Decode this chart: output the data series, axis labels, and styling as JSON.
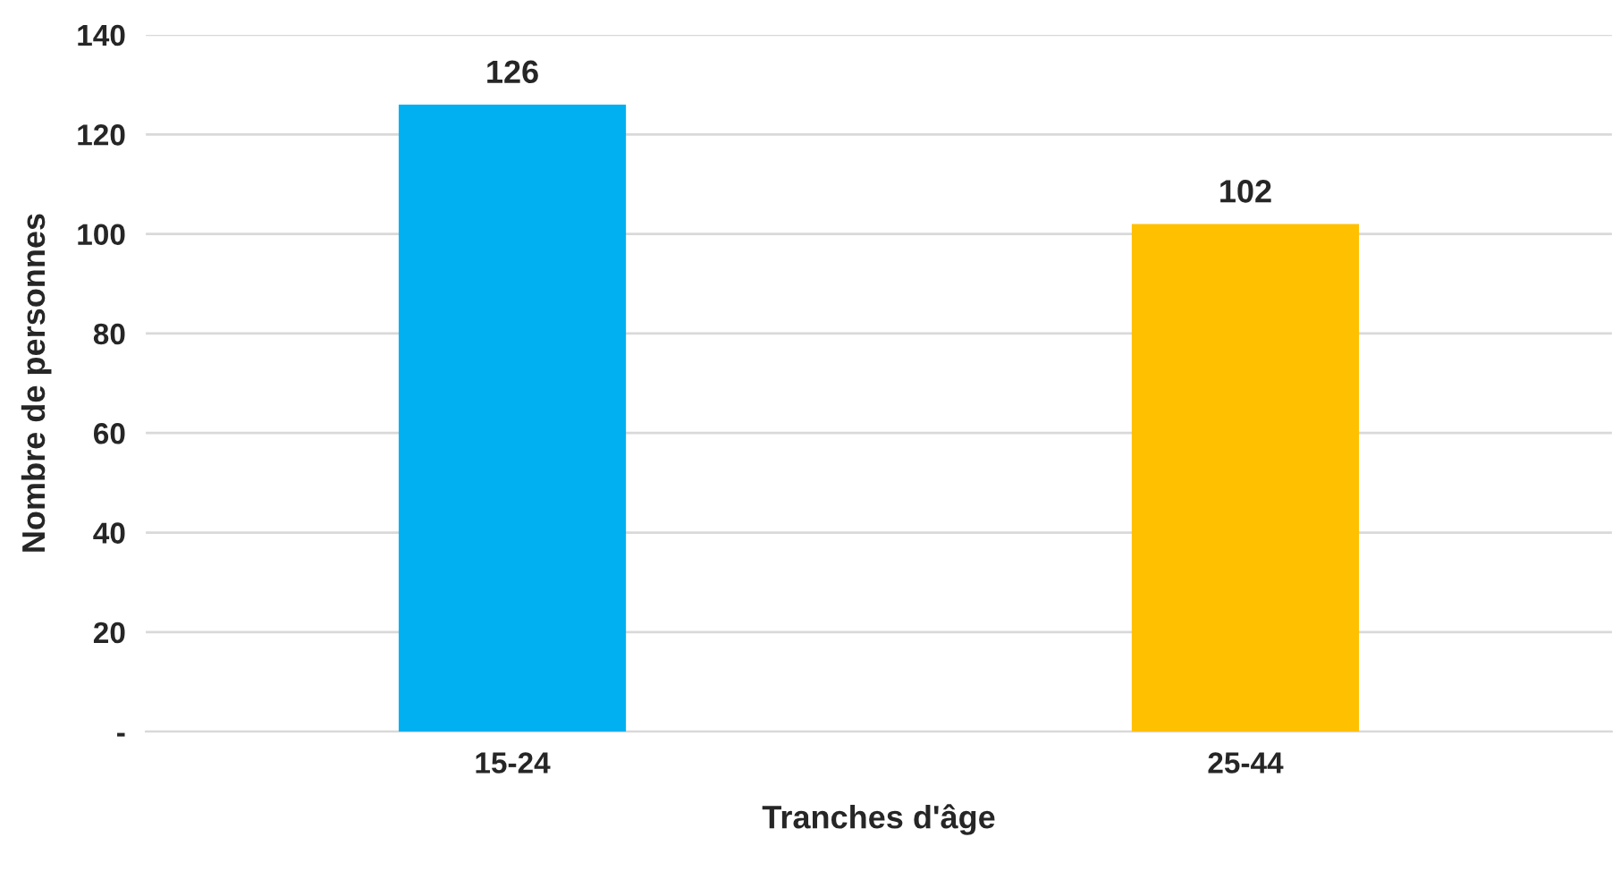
{
  "chart_data": {
    "type": "bar",
    "xlabel": "Tranches d'âge",
    "ylabel": "Nombre de personnes",
    "categories": [
      "15-24",
      "25-44"
    ],
    "values": [
      126,
      102
    ],
    "colors": [
      "#00b0f0",
      "#ffc000"
    ],
    "ylim": [
      0,
      140
    ],
    "yticks": [
      {
        "value": 0,
        "label": "-"
      },
      20,
      40,
      60,
      80,
      100,
      120,
      140
    ],
    "grid": "y",
    "data_labels": true
  }
}
